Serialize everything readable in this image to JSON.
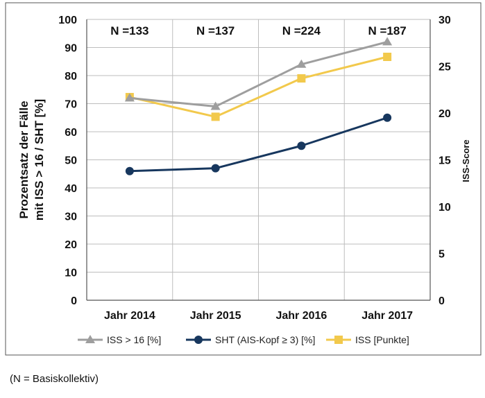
{
  "chart_data": {
    "type": "line",
    "categories": [
      "Jahr 2014",
      "Jahr 2015",
      "Jahr 2016",
      "Jahr 2017"
    ],
    "annotations": [
      "N =133",
      "N =137",
      "N =224",
      "N =187"
    ],
    "ylabel_line1": "Prozentsatz der Fälle",
    "ylabel_line2": "mit ISS > 16 / SHT [%]",
    "y2label": "ISS-Score",
    "ylim": [
      0,
      100
    ],
    "y_ticks": [
      0,
      10,
      20,
      30,
      40,
      50,
      60,
      70,
      80,
      90,
      100
    ],
    "y2lim": [
      0,
      30
    ],
    "y2_ticks": [
      0,
      5,
      10,
      15,
      20,
      25,
      30
    ],
    "grid": true,
    "legend_position": "bottom",
    "series": [
      {
        "name": "ISS > 16 [%]",
        "axis": "left",
        "values": [
          72,
          69,
          84,
          92
        ],
        "color": "#9e9e9e",
        "marker": "triangle"
      },
      {
        "name": "SHT (AIS-Kopf ≥ 3) [%]",
        "axis": "left",
        "values": [
          46,
          47,
          55,
          65
        ],
        "color": "#17375e",
        "marker": "circle"
      },
      {
        "name": "ISS [Punkte]",
        "axis": "right",
        "values": [
          21.7,
          19.6,
          23.7,
          26
        ],
        "color": "#f2c94c",
        "marker": "square"
      }
    ]
  },
  "footnote": "(N = Basiskollektiv)"
}
